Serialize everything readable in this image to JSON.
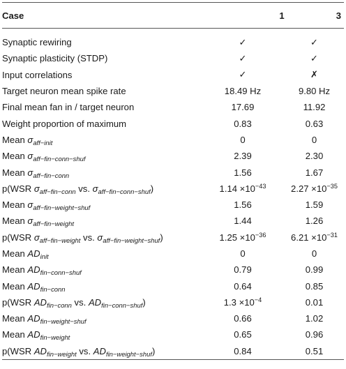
{
  "header": {
    "case": "Case",
    "col1": "1",
    "col2": "3"
  },
  "rows": [
    {
      "label": "Synaptic rewiring",
      "v1": "✓",
      "v3": "✓"
    },
    {
      "label": "Synaptic plasticity (STDP)",
      "v1": "✓",
      "v3": "✓"
    },
    {
      "label": "Input correlations",
      "v1": "✓",
      "v3": "✗"
    },
    {
      "label": "Target neuron mean spike rate",
      "v1": "18.49 Hz",
      "v3": "9.80 Hz"
    },
    {
      "label": "Final mean fan in / target neuron",
      "v1": "17.69",
      "v3": "11.92"
    },
    {
      "label": "Weight proportion of maximum",
      "v1": "0.83",
      "v3": "0.63"
    },
    {
      "label": "Mean σaff−init",
      "v1": "0",
      "v3": "0"
    },
    {
      "label": "Mean σaff−fin−conn−shuf",
      "v1": "2.39",
      "v3": "2.30"
    },
    {
      "label": "Mean σaff−fin−conn",
      "v1": "1.56",
      "v3": "1.67"
    },
    {
      "label": "p(WSR σaff−fin−conn vs. σaff−fin−conn−shuf)",
      "v1": "1.14 ×10−43",
      "v3": "2.27 ×10−35"
    },
    {
      "label": "Mean σaff−fin−weight−shuf",
      "v1": "1.56",
      "v3": "1.59"
    },
    {
      "label": "Mean σaff−fin−weight",
      "v1": "1.44",
      "v3": "1.26"
    },
    {
      "label": "p(WSR σaff−fin−weight vs. σaff−fin−weight−shuf)",
      "v1": "1.25 ×10−36",
      "v3": "6.21 ×10−31"
    },
    {
      "label": "Mean ADinit",
      "v1": "0",
      "v3": "0"
    },
    {
      "label": "Mean ADfin−conn−shuf",
      "v1": "0.79",
      "v3": "0.99"
    },
    {
      "label": "Mean ADfin−conn",
      "v1": "0.64",
      "v3": "0.85"
    },
    {
      "label": "p(WSR ADfin−conn vs. ADfin−conn−shuf)",
      "v1": "1.3 ×10−4",
      "v3": "0.01"
    },
    {
      "label": "Mean ADfin−weight−shuf",
      "v1": "0.66",
      "v3": "1.02"
    },
    {
      "label": "Mean ADfin−weight",
      "v1": "0.65",
      "v3": "0.96"
    },
    {
      "label": "p(WSR ADfin−weight vs. ADfin−weight−shuf)",
      "v1": "0.84",
      "v3": "0.51"
    }
  ]
}
